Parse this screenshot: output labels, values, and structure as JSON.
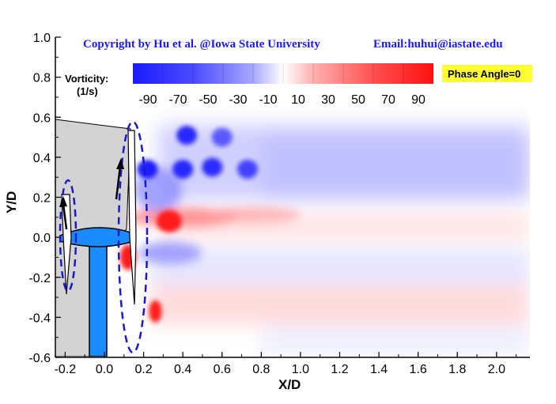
{
  "header": {
    "copyright": "Copyright by Hu et al. @Iowa State University",
    "email": "Email:huhui@iastate.edu"
  },
  "colorbar": {
    "title_line1": "Vorticity:",
    "title_line2": "(1/s)",
    "ticks": [
      "-90",
      "-70",
      "-50",
      "-30",
      "-10",
      "10",
      "30",
      "50",
      "70",
      "90"
    ],
    "range": [
      -100,
      100
    ],
    "low_color": "#1a1aff",
    "mid_color": "#ffffff",
    "high_color": "#ff1a1a"
  },
  "phase_badge": {
    "text": "Phase Angle=0",
    "color": "#ffff33"
  },
  "colors": {
    "turbine_blue": "#1a8cff",
    "tower_outline": "#000000",
    "ellipse_dash": "#1a1acc",
    "shadow_grey": "#d3d3d3"
  },
  "chart_data": {
    "type": "heatmap",
    "title": "",
    "xlabel": "X/D",
    "ylabel": "Y/D",
    "xlim": [
      -0.25,
      2.17
    ],
    "ylim": [
      -0.6,
      1.0
    ],
    "plot_ylim_data": [
      -0.6,
      0.6
    ],
    "x_ticks": [
      "-0.2",
      "0.0",
      "0.2",
      "0.4",
      "0.6",
      "0.8",
      "1.0",
      "1.2",
      "1.4",
      "1.6",
      "1.8",
      "2.0"
    ],
    "y_ticks": [
      "-0.6",
      "-0.4",
      "-0.2",
      "0.0",
      "0.2",
      "0.4",
      "0.6",
      "0.8",
      "1.0"
    ],
    "grid": false,
    "field_description": "phase-locked vorticity field behind wind turbine",
    "tip_vortices_upper": [
      {
        "x": 0.22,
        "y": 0.34,
        "vorticity": -90
      },
      {
        "x": 0.4,
        "y": 0.34,
        "vorticity": -85
      },
      {
        "x": 0.55,
        "y": 0.35,
        "vorticity": -80
      },
      {
        "x": 0.73,
        "y": 0.34,
        "vorticity": -70
      },
      {
        "x": 0.42,
        "y": 0.51,
        "vorticity": -85
      },
      {
        "x": 0.6,
        "y": 0.5,
        "vorticity": -60
      }
    ],
    "root_vortex": {
      "x": 0.33,
      "y": 0.08,
      "vorticity": 90
    },
    "lower_vortex": {
      "x": 0.26,
      "y": -0.37,
      "vorticity": 90
    }
  }
}
